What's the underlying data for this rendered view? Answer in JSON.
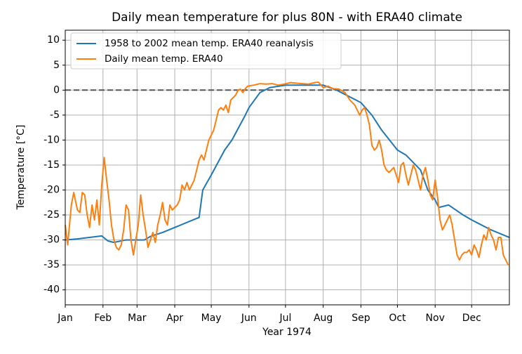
{
  "chart_data": {
    "type": "line",
    "title": "Daily mean temperature for plus 80N - with ERA40 climate",
    "xlabel": "Year 1974",
    "ylabel": "Temperature [°C]",
    "xlim": [
      0,
      365
    ],
    "xticks": [
      {
        "value": 0,
        "label": "Jan"
      },
      {
        "value": 31,
        "label": "Feb"
      },
      {
        "value": 59,
        "label": "Mar"
      },
      {
        "value": 90,
        "label": "Apr"
      },
      {
        "value": 120,
        "label": "May"
      },
      {
        "value": 151,
        "label": "Jun"
      },
      {
        "value": 181,
        "label": "Jul"
      },
      {
        "value": 212,
        "label": "Aug"
      },
      {
        "value": 243,
        "label": "Sep"
      },
      {
        "value": 273,
        "label": "Oct"
      },
      {
        "value": 304,
        "label": "Nov"
      },
      {
        "value": 334,
        "label": "Dec"
      }
    ],
    "ylim": [
      -43,
      12
    ],
    "yticks": [
      -40,
      -35,
      -30,
      -25,
      -20,
      -15,
      -10,
      -5,
      0,
      5,
      10
    ],
    "grid": true,
    "hline": 0,
    "legend": "upper left",
    "series": [
      {
        "name": "1958 to 2002 mean temp. ERA40 reanalysis",
        "color": "#1f77b4",
        "x": [
          0,
          10,
          20,
          30,
          35,
          40,
          50,
          59,
          65,
          70,
          80,
          90,
          100,
          110,
          113,
          120,
          131,
          137,
          148,
          151,
          160,
          168,
          181,
          212,
          223,
          243,
          252,
          260,
          273,
          280,
          292,
          298,
          304,
          307,
          315,
          327,
          334,
          338,
          350,
          365
        ],
        "values": [
          -30,
          -29.8,
          -29.5,
          -29.2,
          -30.2,
          -30.5,
          -30,
          -30,
          -30,
          -29.3,
          -28.5,
          -27.5,
          -26.5,
          -25.5,
          -20,
          -17,
          -12,
          -10,
          -5,
          -3.5,
          -0.5,
          0.5,
          1,
          1,
          0,
          -2.5,
          -5,
          -8,
          -12,
          -13,
          -16,
          -20,
          -22,
          -23.5,
          -23,
          -25,
          -26,
          -26.5,
          -28,
          -29.5
        ]
      },
      {
        "name": "Daily mean temp. ERA40",
        "color": "#ff7f0e",
        "x": [
          0,
          2,
          5,
          7,
          10,
          12,
          14,
          16,
          18,
          20,
          22,
          24,
          26,
          28,
          30,
          32,
          34,
          36,
          38,
          40,
          42,
          44,
          46,
          48,
          50,
          52,
          54,
          56,
          58,
          60,
          62,
          64,
          66,
          68,
          70,
          72,
          74,
          76,
          78,
          80,
          82,
          84,
          86,
          88,
          90,
          92,
          94,
          96,
          98,
          100,
          102,
          104,
          106,
          108,
          110,
          112,
          114,
          116,
          118,
          120,
          122,
          124,
          126,
          128,
          130,
          132,
          134,
          136,
          138,
          140,
          142,
          144,
          146,
          148,
          150,
          155,
          160,
          165,
          170,
          175,
          180,
          185,
          190,
          195,
          200,
          205,
          208,
          212,
          216,
          220,
          225,
          230,
          234,
          238,
          242,
          244,
          246,
          248,
          250,
          252,
          254,
          256,
          258,
          260,
          262,
          264,
          266,
          268,
          270,
          272,
          274,
          276,
          278,
          280,
          282,
          284,
          286,
          288,
          290,
          292,
          294,
          296,
          298,
          300,
          302,
          304,
          306,
          308,
          310,
          312,
          314,
          316,
          318,
          320,
          322,
          324,
          326,
          328,
          330,
          332,
          334,
          336,
          338,
          340,
          342,
          344,
          346,
          348,
          350,
          352,
          354,
          356,
          358,
          360,
          362,
          364
        ],
        "values": [
          -27,
          -31,
          -23,
          -20.5,
          -24,
          -24.5,
          -20.5,
          -21,
          -25,
          -27.5,
          -23,
          -26,
          -22,
          -27,
          -19,
          -13.5,
          -18,
          -22,
          -27,
          -30,
          -31.5,
          -32,
          -31,
          -28,
          -23,
          -24,
          -30,
          -33,
          -30,
          -27,
          -21,
          -25,
          -28,
          -31.5,
          -30,
          -28.5,
          -30.5,
          -27,
          -25,
          -22.5,
          -26,
          -27,
          -23,
          -24,
          -23.5,
          -23,
          -22,
          -19,
          -20,
          -18.5,
          -20,
          -19,
          -18,
          -16,
          -14,
          -13,
          -14,
          -12,
          -10,
          -9,
          -8,
          -6,
          -4,
          -3.5,
          -4,
          -3,
          -4.5,
          -2,
          -1.5,
          -1,
          0,
          0.2,
          -0.5,
          0.3,
          0.8,
          1,
          1.3,
          1.2,
          1.3,
          1,
          1.2,
          1.5,
          1.4,
          1.3,
          1.2,
          1.5,
          1.6,
          0.5,
          0.8,
          0.3,
          0.2,
          -0.5,
          -2,
          -3,
          -5,
          -4,
          -3.5,
          -5,
          -7,
          -11,
          -12,
          -11.5,
          -10,
          -12,
          -15,
          -16,
          -16.5,
          -16,
          -15.5,
          -17,
          -18.5,
          -15,
          -14.5,
          -17,
          -19,
          -17,
          -15,
          -16,
          -18,
          -20,
          -17,
          -15.5,
          -18,
          -21,
          -22,
          -18,
          -21.5,
          -26,
          -28,
          -27,
          -26,
          -25,
          -27,
          -30,
          -33,
          -34,
          -33,
          -32.5,
          -32.5,
          -32,
          -33,
          -31,
          -32,
          -33.5,
          -31,
          -29,
          -30,
          -27.5,
          -29,
          -30,
          -32,
          -29.5,
          -29.5,
          -33,
          -34,
          -35
        ]
      }
    ]
  }
}
